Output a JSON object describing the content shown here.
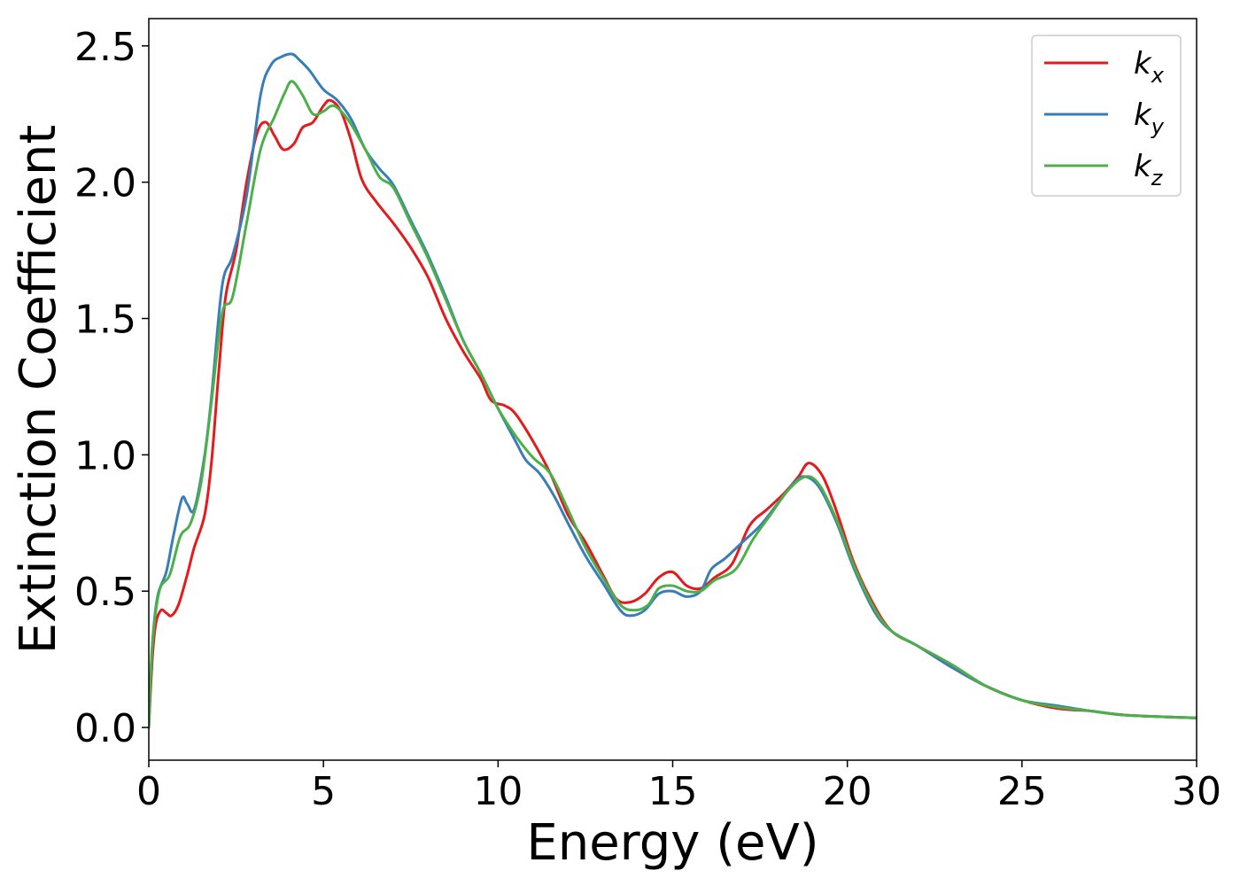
{
  "chart_data": {
    "type": "line",
    "xlabel": "Energy (eV)",
    "ylabel": "Extinction Coefficient",
    "xlim": [
      0,
      30
    ],
    "ylim": [
      -0.12,
      2.6
    ],
    "xticks": [
      "0",
      "5",
      "10",
      "15",
      "20",
      "25",
      "30"
    ],
    "yticks": [
      "0.0",
      "0.5",
      "1.0",
      "1.5",
      "2.0",
      "2.5"
    ],
    "grid": false,
    "legend_position": "top-right",
    "series": [
      {
        "name_base": "k",
        "name_sub": "x",
        "color": "#e41a1c",
        "points": [
          [
            0,
            0
          ],
          [
            0.1,
            0.25
          ],
          [
            0.2,
            0.38
          ],
          [
            0.35,
            0.43
          ],
          [
            0.5,
            0.42
          ],
          [
            0.65,
            0.41
          ],
          [
            0.85,
            0.45
          ],
          [
            1.1,
            0.56
          ],
          [
            1.3,
            0.66
          ],
          [
            1.6,
            0.78
          ],
          [
            1.8,
            0.98
          ],
          [
            2.0,
            1.3
          ],
          [
            2.2,
            1.58
          ],
          [
            2.5,
            1.75
          ],
          [
            2.8,
            2.0
          ],
          [
            3.1,
            2.18
          ],
          [
            3.35,
            2.22
          ],
          [
            3.6,
            2.17
          ],
          [
            3.85,
            2.12
          ],
          [
            4.15,
            2.14
          ],
          [
            4.4,
            2.2
          ],
          [
            4.7,
            2.22
          ],
          [
            5.0,
            2.28
          ],
          [
            5.2,
            2.3
          ],
          [
            5.5,
            2.26
          ],
          [
            5.8,
            2.15
          ],
          [
            6.1,
            2.01
          ],
          [
            6.5,
            1.93
          ],
          [
            7.0,
            1.85
          ],
          [
            7.5,
            1.76
          ],
          [
            8.0,
            1.65
          ],
          [
            8.5,
            1.5
          ],
          [
            9.0,
            1.38
          ],
          [
            9.5,
            1.28
          ],
          [
            9.8,
            1.2
          ],
          [
            10.2,
            1.18
          ],
          [
            10.5,
            1.15
          ],
          [
            11.0,
            1.05
          ],
          [
            11.5,
            0.93
          ],
          [
            12.0,
            0.78
          ],
          [
            12.5,
            0.68
          ],
          [
            13.0,
            0.56
          ],
          [
            13.4,
            0.47
          ],
          [
            13.8,
            0.46
          ],
          [
            14.2,
            0.49
          ],
          [
            14.6,
            0.55
          ],
          [
            15.0,
            0.57
          ],
          [
            15.4,
            0.52
          ],
          [
            15.8,
            0.51
          ],
          [
            16.2,
            0.55
          ],
          [
            16.7,
            0.6
          ],
          [
            17.2,
            0.74
          ],
          [
            17.7,
            0.8
          ],
          [
            18.2,
            0.86
          ],
          [
            18.6,
            0.92
          ],
          [
            18.9,
            0.97
          ],
          [
            19.3,
            0.92
          ],
          [
            19.7,
            0.79
          ],
          [
            20.2,
            0.6
          ],
          [
            20.8,
            0.44
          ],
          [
            21.3,
            0.35
          ],
          [
            22.0,
            0.3
          ],
          [
            23.0,
            0.22
          ],
          [
            24.0,
            0.15
          ],
          [
            25.0,
            0.1
          ],
          [
            26.0,
            0.07
          ],
          [
            27.0,
            0.06
          ],
          [
            28.0,
            0.045
          ],
          [
            30.0,
            0.035
          ]
        ]
      },
      {
        "name_base": "k",
        "name_sub": "y",
        "color": "#377eb8",
        "points": [
          [
            0,
            0
          ],
          [
            0.1,
            0.3
          ],
          [
            0.25,
            0.48
          ],
          [
            0.5,
            0.57
          ],
          [
            0.7,
            0.7
          ],
          [
            0.95,
            0.84
          ],
          [
            1.1,
            0.82
          ],
          [
            1.3,
            0.8
          ],
          [
            1.6,
            1.0
          ],
          [
            1.8,
            1.22
          ],
          [
            2.1,
            1.62
          ],
          [
            2.4,
            1.73
          ],
          [
            2.8,
            1.95
          ],
          [
            3.2,
            2.32
          ],
          [
            3.5,
            2.43
          ],
          [
            3.8,
            2.46
          ],
          [
            4.1,
            2.47
          ],
          [
            4.3,
            2.45
          ],
          [
            4.6,
            2.41
          ],
          [
            5.0,
            2.34
          ],
          [
            5.4,
            2.3
          ],
          [
            5.8,
            2.23
          ],
          [
            6.2,
            2.12
          ],
          [
            6.6,
            2.05
          ],
          [
            7.0,
            1.99
          ],
          [
            7.5,
            1.86
          ],
          [
            8.0,
            1.73
          ],
          [
            8.5,
            1.58
          ],
          [
            9.0,
            1.42
          ],
          [
            9.5,
            1.3
          ],
          [
            10.0,
            1.17
          ],
          [
            10.5,
            1.05
          ],
          [
            10.8,
            0.98
          ],
          [
            11.2,
            0.93
          ],
          [
            11.6,
            0.85
          ],
          [
            12.0,
            0.75
          ],
          [
            12.5,
            0.63
          ],
          [
            13.0,
            0.53
          ],
          [
            13.5,
            0.43
          ],
          [
            13.8,
            0.41
          ],
          [
            14.2,
            0.43
          ],
          [
            14.6,
            0.49
          ],
          [
            15.0,
            0.5
          ],
          [
            15.4,
            0.48
          ],
          [
            15.8,
            0.5
          ],
          [
            16.1,
            0.58
          ],
          [
            16.5,
            0.62
          ],
          [
            17.0,
            0.68
          ],
          [
            17.5,
            0.74
          ],
          [
            18.0,
            0.82
          ],
          [
            18.5,
            0.9
          ],
          [
            18.8,
            0.92
          ],
          [
            19.2,
            0.88
          ],
          [
            19.7,
            0.75
          ],
          [
            20.2,
            0.58
          ],
          [
            20.8,
            0.42
          ],
          [
            21.3,
            0.35
          ],
          [
            22.0,
            0.3
          ],
          [
            23.0,
            0.22
          ],
          [
            24.0,
            0.15
          ],
          [
            25.0,
            0.1
          ],
          [
            26.0,
            0.08
          ],
          [
            27.0,
            0.06
          ],
          [
            28.0,
            0.045
          ],
          [
            30.0,
            0.035
          ]
        ]
      },
      {
        "name_base": "k",
        "name_sub": "z",
        "color": "#4daf4a",
        "points": [
          [
            0,
            0
          ],
          [
            0.1,
            0.3
          ],
          [
            0.3,
            0.5
          ],
          [
            0.6,
            0.56
          ],
          [
            0.9,
            0.7
          ],
          [
            1.2,
            0.75
          ],
          [
            1.5,
            0.9
          ],
          [
            1.8,
            1.2
          ],
          [
            2.1,
            1.52
          ],
          [
            2.4,
            1.58
          ],
          [
            2.8,
            1.85
          ],
          [
            3.2,
            2.12
          ],
          [
            3.6,
            2.24
          ],
          [
            3.9,
            2.33
          ],
          [
            4.1,
            2.37
          ],
          [
            4.4,
            2.32
          ],
          [
            4.7,
            2.25
          ],
          [
            5.0,
            2.26
          ],
          [
            5.3,
            2.28
          ],
          [
            5.7,
            2.23
          ],
          [
            6.2,
            2.12
          ],
          [
            6.6,
            2.02
          ],
          [
            7.0,
            1.98
          ],
          [
            7.5,
            1.85
          ],
          [
            8.0,
            1.72
          ],
          [
            8.5,
            1.57
          ],
          [
            9.0,
            1.42
          ],
          [
            9.5,
            1.3
          ],
          [
            10.0,
            1.17
          ],
          [
            10.5,
            1.07
          ],
          [
            11.0,
            0.99
          ],
          [
            11.5,
            0.93
          ],
          [
            12.0,
            0.8
          ],
          [
            12.5,
            0.66
          ],
          [
            13.0,
            0.55
          ],
          [
            13.5,
            0.45
          ],
          [
            13.9,
            0.43
          ],
          [
            14.3,
            0.45
          ],
          [
            14.6,
            0.51
          ],
          [
            15.0,
            0.52
          ],
          [
            15.4,
            0.5
          ],
          [
            15.8,
            0.5
          ],
          [
            16.2,
            0.54
          ],
          [
            16.8,
            0.58
          ],
          [
            17.3,
            0.69
          ],
          [
            17.8,
            0.78
          ],
          [
            18.3,
            0.87
          ],
          [
            18.8,
            0.92
          ],
          [
            19.2,
            0.89
          ],
          [
            19.7,
            0.76
          ],
          [
            20.2,
            0.59
          ],
          [
            20.8,
            0.43
          ],
          [
            21.3,
            0.35
          ],
          [
            22.0,
            0.3
          ],
          [
            23.0,
            0.23
          ],
          [
            24.0,
            0.15
          ],
          [
            25.0,
            0.1
          ],
          [
            26.0,
            0.075
          ],
          [
            27.0,
            0.06
          ],
          [
            28.0,
            0.045
          ],
          [
            30.0,
            0.035
          ]
        ]
      }
    ]
  }
}
